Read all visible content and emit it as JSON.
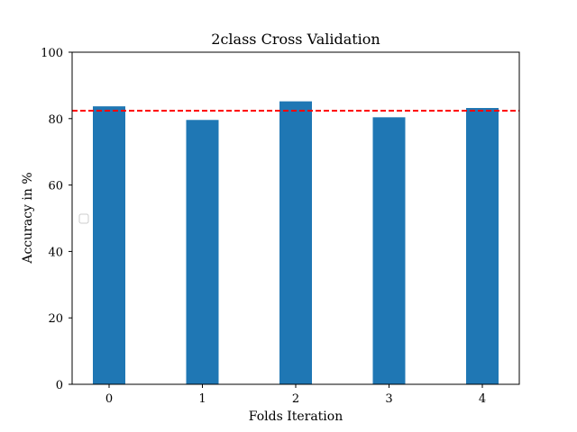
{
  "chart_data": {
    "type": "bar",
    "title": "2class Cross Validation",
    "xlabel": "Folds Iteration",
    "ylabel": "Accuracy in %",
    "categories": [
      "0",
      "1",
      "2",
      "3",
      "4"
    ],
    "values": [
      83.7,
      79.6,
      85.2,
      80.4,
      83.2
    ],
    "ylim": [
      0,
      100
    ],
    "yticks": [
      "0",
      "20",
      "40",
      "60",
      "80",
      "100"
    ],
    "reference_line": {
      "value": 82.4,
      "color": "#ff0000",
      "style": "dashed"
    },
    "bar_color": "#1f77b4",
    "grid": false,
    "legend": {
      "location": "center left",
      "entries": []
    }
  }
}
